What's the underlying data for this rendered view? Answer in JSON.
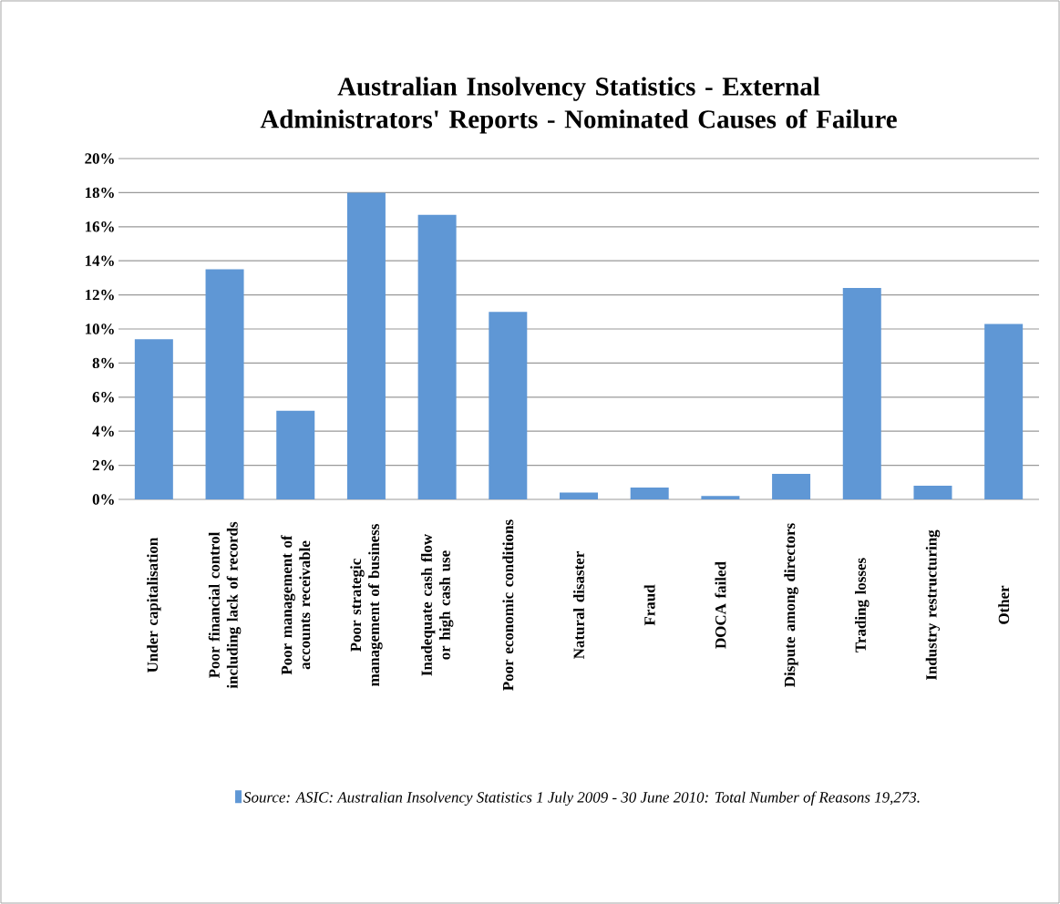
{
  "chart_data": {
    "type": "bar",
    "title": "Australian Insolvency Statistics - External Administrators' Reports - Nominated Causes of Failure",
    "categories": [
      "Under capitalisation",
      "Poor financial control including lack of records",
      "Poor management of accounts receivable",
      "Poor strategic management of business",
      "Inadequate cash flow or high cash use",
      "Poor economic conditions",
      "Natural disaster",
      "Fraud",
      "DOCA failed",
      "Dispute among directors",
      "Trading losses",
      "Industry restructuring",
      "Other"
    ],
    "series": [
      {
        "name": "*Source: ASIC: Australian Insolvency Statistics 1 July 2009 - 30 June 2010: Total Number of Reasons 19,273.*",
        "color": "#5f97d5",
        "values": [
          9.4,
          13.5,
          5.2,
          18.0,
          16.7,
          11.0,
          0.4,
          0.7,
          0.2,
          1.5,
          12.4,
          0.8,
          10.3
        ]
      }
    ],
    "ylim": [
      0,
      20
    ],
    "yticks": [
      {
        "value": 0,
        "label": "0%"
      },
      {
        "value": 2,
        "label": "2%"
      },
      {
        "value": 4,
        "label": "4%"
      },
      {
        "value": 6,
        "label": "6%"
      },
      {
        "value": 8,
        "label": "8%"
      },
      {
        "value": 10,
        "label": "10%"
      },
      {
        "value": 12,
        "label": "12%"
      },
      {
        "value": 14,
        "label": "14%"
      },
      {
        "value": 16,
        "label": "16%"
      },
      {
        "value": 18,
        "label": "18%"
      },
      {
        "value": 20,
        "label": "20%"
      }
    ],
    "grid": "y",
    "legend": "bottom"
  }
}
